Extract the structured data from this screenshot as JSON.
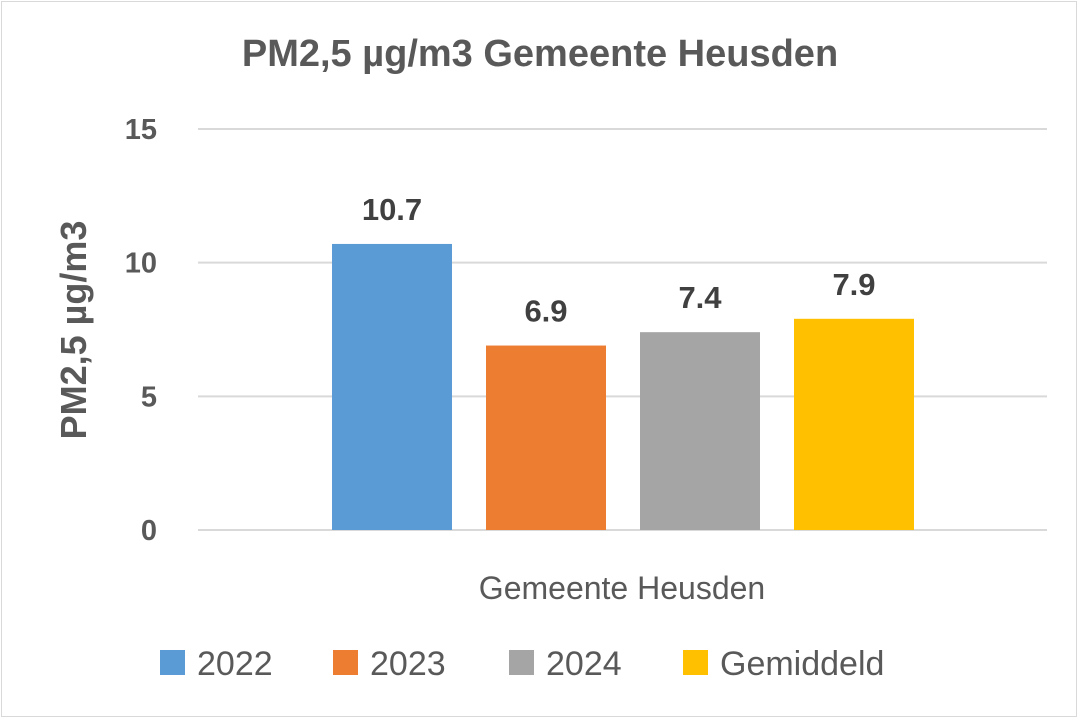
{
  "chart_data": {
    "type": "bar",
    "title": "PM2,5 µg/m3 Gemeente Heusden",
    "xlabel": "",
    "ylabel": "PM2,5 µg/m3",
    "categories": [
      "Gemeente Heusden"
    ],
    "series": [
      {
        "name": "2022",
        "values": [
          10.7
        ],
        "color": "#5b9bd5",
        "label": "10.7"
      },
      {
        "name": "2023",
        "values": [
          6.9
        ],
        "color": "#ed7d31",
        "label": "6.9"
      },
      {
        "name": "2024",
        "values": [
          7.4
        ],
        "color": "#a5a5a5",
        "label": "7.4"
      },
      {
        "name": "Gemiddeld",
        "values": [
          7.9
        ],
        "color": "#ffc000",
        "label": "7.9"
      }
    ],
    "ylim": [
      0,
      15
    ],
    "yticks": [
      "0",
      "5",
      "10",
      "15"
    ],
    "grid": true,
    "legend": "bottom"
  }
}
